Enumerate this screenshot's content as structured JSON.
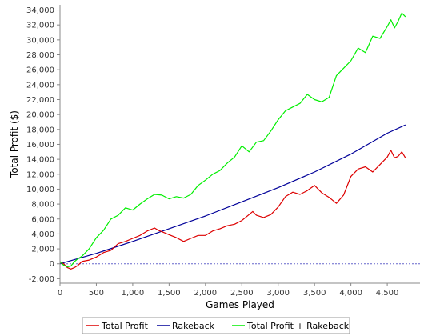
{
  "chart_data": {
    "type": "line",
    "title": "",
    "xlabel": "Games Played",
    "ylabel": "Total Profit ($)",
    "xlim": [
      0,
      4950
    ],
    "ylim": [
      -2600,
      34700
    ],
    "x_ticks": [
      0,
      500,
      1000,
      1500,
      2000,
      2500,
      3000,
      3500,
      4000,
      4500
    ],
    "x_tick_labels": [
      "0",
      "500",
      "1,000",
      "1,500",
      "2,000",
      "2,500",
      "3,000",
      "3,500",
      "4,000",
      "4,500"
    ],
    "y_ticks": [
      -2000,
      0,
      2000,
      4000,
      6000,
      8000,
      10000,
      12000,
      14000,
      16000,
      18000,
      20000,
      22000,
      24000,
      26000,
      28000,
      30000,
      32000,
      34000
    ],
    "y_tick_labels": [
      "-2,000",
      "0",
      "2,000",
      "4,000",
      "6,000",
      "8,000",
      "10,000",
      "12,000",
      "14,000",
      "16,000",
      "18,000",
      "20,000",
      "22,000",
      "24,000",
      "26,000",
      "28,000",
      "30,000",
      "32,000",
      "34,000"
    ],
    "grid": false,
    "zero_line": true,
    "legend_position": "bottom",
    "series": [
      {
        "name": "Total Profit",
        "color": "#dd0000",
        "x": [
          0,
          50,
          100,
          150,
          200,
          250,
          300,
          400,
          500,
          600,
          700,
          800,
          900,
          1000,
          1100,
          1200,
          1300,
          1350,
          1400,
          1500,
          1600,
          1700,
          1800,
          1900,
          2000,
          2100,
          2200,
          2300,
          2400,
          2500,
          2600,
          2650,
          2700,
          2800,
          2900,
          3000,
          3100,
          3200,
          3300,
          3400,
          3500,
          3600,
          3700,
          3800,
          3900,
          4000,
          4100,
          4200,
          4300,
          4400,
          4500,
          4550,
          4600,
          4650,
          4700,
          4750
        ],
        "y": [
          200,
          0,
          -500,
          -700,
          -500,
          -200,
          300,
          500,
          900,
          1500,
          1800,
          2700,
          3000,
          3400,
          3800,
          4400,
          4800,
          4500,
          4300,
          3900,
          3500,
          3000,
          3400,
          3800,
          3800,
          4400,
          4700,
          5100,
          5300,
          5800,
          6600,
          7000,
          6500,
          6200,
          6600,
          7600,
          9000,
          9600,
          9300,
          9800,
          10500,
          9500,
          8900,
          8100,
          9200,
          11700,
          12700,
          13000,
          12300,
          13300,
          14300,
          15200,
          14200,
          14400,
          15000,
          14200
        ]
      },
      {
        "name": "Rakeback",
        "color": "#000099",
        "x": [
          0,
          500,
          1000,
          1500,
          2000,
          2500,
          3000,
          3500,
          4000,
          4500,
          4750
        ],
        "y": [
          0,
          1400,
          3000,
          4700,
          6400,
          8300,
          10200,
          12300,
          14700,
          17500,
          18600
        ]
      },
      {
        "name": "Total Profit + Rakeback",
        "color": "#00ee00",
        "x": [
          0,
          50,
          100,
          150,
          200,
          250,
          300,
          400,
          500,
          600,
          700,
          800,
          900,
          1000,
          1100,
          1200,
          1300,
          1400,
          1500,
          1600,
          1700,
          1800,
          1900,
          2000,
          2100,
          2200,
          2300,
          2400,
          2500,
          2600,
          2700,
          2800,
          2900,
          3000,
          3100,
          3200,
          3300,
          3400,
          3500,
          3600,
          3700,
          3800,
          3900,
          4000,
          4100,
          4200,
          4300,
          4400,
          4500,
          4550,
          4600,
          4650,
          4700,
          4750
        ],
        "y": [
          300,
          -200,
          -400,
          -300,
          300,
          700,
          1000,
          2000,
          3500,
          4500,
          6000,
          6500,
          7500,
          7200,
          8000,
          8700,
          9300,
          9200,
          8700,
          9000,
          8800,
          9300,
          10500,
          11200,
          12000,
          12500,
          13500,
          14300,
          15800,
          15000,
          16300,
          16500,
          17800,
          19300,
          20500,
          21000,
          21500,
          22700,
          22000,
          21700,
          22300,
          25200,
          26200,
          27200,
          28900,
          28300,
          30500,
          30200,
          31800,
          32700,
          31600,
          32500,
          33600,
          33100
        ]
      }
    ]
  }
}
